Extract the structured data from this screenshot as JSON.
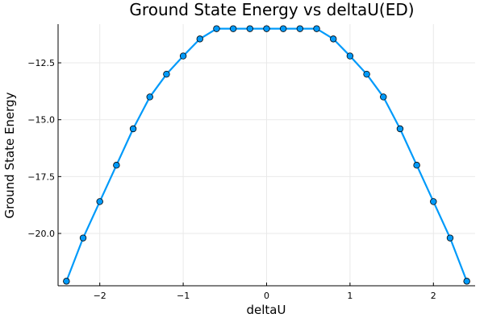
{
  "chart_data": {
    "type": "line",
    "title": "Ground State Energy vs deltaU(ED)",
    "xlabel": "deltaU",
    "ylabel": "Ground State Energy",
    "xlim": [
      -2.5,
      2.5
    ],
    "ylim": [
      -22.3,
      -10.8
    ],
    "x_ticks": [
      -2,
      -1,
      0,
      1,
      2
    ],
    "x_tick_labels": [
      "−2",
      "−1",
      "0",
      "1",
      "2"
    ],
    "y_ticks": [
      -12.5,
      -15.0,
      -17.5,
      -20.0
    ],
    "y_tick_labels": [
      "−12.5",
      "−15.0",
      "−17.5",
      "−20.0"
    ],
    "grid": true,
    "legend": "none",
    "series": [
      {
        "color": "#009AFA",
        "x": [
          -2.4,
          -2.2,
          -2.0,
          -1.8,
          -1.6,
          -1.4,
          -1.2,
          -1.0,
          -0.8,
          -0.6,
          -0.4,
          -0.2,
          0.0,
          0.2,
          0.4,
          0.6,
          0.8,
          1.0,
          1.2,
          1.4,
          1.6,
          1.8,
          2.0,
          2.2,
          2.4
        ],
        "y": [
          -22.1,
          -20.2,
          -18.6,
          -17.0,
          -15.4,
          -14.0,
          -13.0,
          -12.2,
          -11.45,
          -11.0,
          -11.0,
          -11.0,
          -11.0,
          -11.0,
          -11.0,
          -11.0,
          -11.45,
          -12.2,
          -13.0,
          -14.0,
          -15.4,
          -17.0,
          -18.6,
          -20.2,
          -22.1
        ]
      }
    ]
  }
}
